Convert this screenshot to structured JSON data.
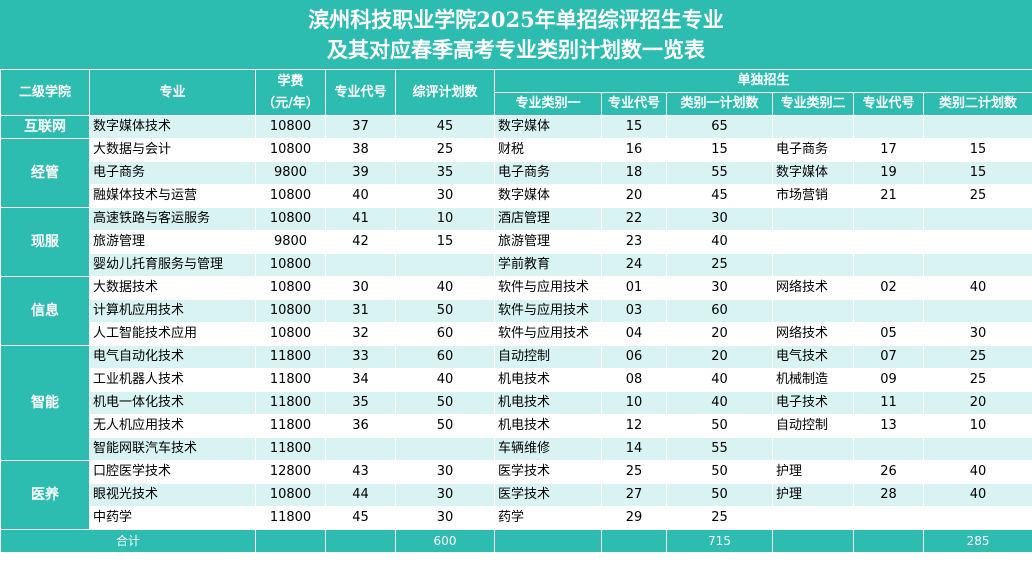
{
  "title": {
    "line1": "滨州科技职业学院2025年单招综评招生专业",
    "line2": "及其对应春季高考专业类别计划数一览表"
  },
  "header": {
    "college": "二级学院",
    "major": "专业",
    "fee_line1": "学费",
    "fee_line2": "（元/年）",
    "code": "专业代号",
    "plan": "综评计划数",
    "single": "单独招生",
    "cat1": "专业类别一",
    "code1": "专业代号",
    "plan1": "类别一计划数",
    "cat2": "专业类别二",
    "code2": "专业代号",
    "plan2": "类别二计划数"
  },
  "groups": [
    {
      "college": "互联网",
      "rows": [
        {
          "major": "数字媒体技术",
          "fee": "10800",
          "code": "37",
          "plan": "45",
          "cat1": "数字媒体",
          "code1": "15",
          "plan1": "65",
          "cat2": "",
          "code2": "",
          "plan2": ""
        }
      ]
    },
    {
      "college": "经管",
      "rows": [
        {
          "major": "大数据与会计",
          "fee": "10800",
          "code": "38",
          "plan": "25",
          "cat1": "财税",
          "code1": "16",
          "plan1": "15",
          "cat2": "电子商务",
          "code2": "17",
          "plan2": "15"
        },
        {
          "major": "电子商务",
          "fee": "9800",
          "code": "39",
          "plan": "35",
          "cat1": "电子商务",
          "code1": "18",
          "plan1": "55",
          "cat2": "数字媒体",
          "code2": "19",
          "plan2": "15"
        },
        {
          "major": "融媒体技术与运营",
          "fee": "10800",
          "code": "40",
          "plan": "30",
          "cat1": "数字媒体",
          "code1": "20",
          "plan1": "45",
          "cat2": "市场营销",
          "code2": "21",
          "plan2": "25"
        }
      ]
    },
    {
      "college": "现服",
      "rows": [
        {
          "major": "高速铁路与客运服务",
          "fee": "10800",
          "code": "41",
          "plan": "10",
          "cat1": "酒店管理",
          "code1": "22",
          "plan1": "30",
          "cat2": "",
          "code2": "",
          "plan2": ""
        },
        {
          "major": "旅游管理",
          "fee": "9800",
          "code": "42",
          "plan": "15",
          "cat1": "旅游管理",
          "code1": "23",
          "plan1": "40",
          "cat2": "",
          "code2": "",
          "plan2": ""
        },
        {
          "major": "婴幼儿托育服务与管理",
          "fee": "10800",
          "code": "",
          "plan": "",
          "cat1": "学前教育",
          "code1": "24",
          "plan1": "25",
          "cat2": "",
          "code2": "",
          "plan2": ""
        }
      ]
    },
    {
      "college": "信息",
      "rows": [
        {
          "major": "大数据技术",
          "fee": "10800",
          "code": "30",
          "plan": "40",
          "cat1": "软件与应用技术",
          "code1": "01",
          "plan1": "30",
          "cat2": "网络技术",
          "code2": "02",
          "plan2": "40"
        },
        {
          "major": "计算机应用技术",
          "fee": "10800",
          "code": "31",
          "plan": "50",
          "cat1": "软件与应用技术",
          "code1": "03",
          "plan1": "60",
          "cat2": "",
          "code2": "",
          "plan2": ""
        },
        {
          "major": "人工智能技术应用",
          "fee": "10800",
          "code": "32",
          "plan": "60",
          "cat1": "软件与应用技术",
          "code1": "04",
          "plan1": "20",
          "cat2": "网络技术",
          "code2": "05",
          "plan2": "30"
        }
      ]
    },
    {
      "college": "智能",
      "rows": [
        {
          "major": "电气自动化技术",
          "fee": "11800",
          "code": "33",
          "plan": "60",
          "cat1": "自动控制",
          "code1": "06",
          "plan1": "20",
          "cat2": "电气技术",
          "code2": "07",
          "plan2": "25"
        },
        {
          "major": "工业机器人技术",
          "fee": "11800",
          "code": "34",
          "plan": "40",
          "cat1": "机电技术",
          "code1": "08",
          "plan1": "40",
          "cat2": "机械制造",
          "code2": "09",
          "plan2": "25"
        },
        {
          "major": "机电一体化技术",
          "fee": "11800",
          "code": "35",
          "plan": "50",
          "cat1": "机电技术",
          "code1": "10",
          "plan1": "40",
          "cat2": "电子技术",
          "code2": "11",
          "plan2": "20"
        },
        {
          "major": "无人机应用技术",
          "fee": "11800",
          "code": "36",
          "plan": "50",
          "cat1": "机电技术",
          "code1": "12",
          "plan1": "50",
          "cat2": "自动控制",
          "code2": "13",
          "plan2": "10"
        },
        {
          "major": "智能网联汽车技术",
          "fee": "11800",
          "code": "",
          "plan": "",
          "cat1": "车辆维修",
          "code1": "14",
          "plan1": "55",
          "cat2": "",
          "code2": "",
          "plan2": ""
        }
      ]
    },
    {
      "college": "医养",
      "rows": [
        {
          "major": "口腔医学技术",
          "fee": "12800",
          "code": "43",
          "plan": "30",
          "cat1": "医学技术",
          "code1": "25",
          "plan1": "50",
          "cat2": "护理",
          "code2": "26",
          "plan2": "40"
        },
        {
          "major": "眼视光技术",
          "fee": "10800",
          "code": "44",
          "plan": "30",
          "cat1": "医学技术",
          "code1": "27",
          "plan1": "50",
          "cat2": "护理",
          "code2": "28",
          "plan2": "40"
        },
        {
          "major": "中药学",
          "fee": "11800",
          "code": "45",
          "plan": "30",
          "cat1": "药学",
          "code1": "29",
          "plan1": "25",
          "cat2": "",
          "code2": "",
          "plan2": ""
        }
      ]
    }
  ],
  "total": {
    "label": "合计",
    "plan": "600",
    "plan1": "715",
    "plan2": "285"
  },
  "colors": {
    "header": "#2dbcb0",
    "row_light": "#d8f3f1",
    "row_white": "#ffffff"
  }
}
